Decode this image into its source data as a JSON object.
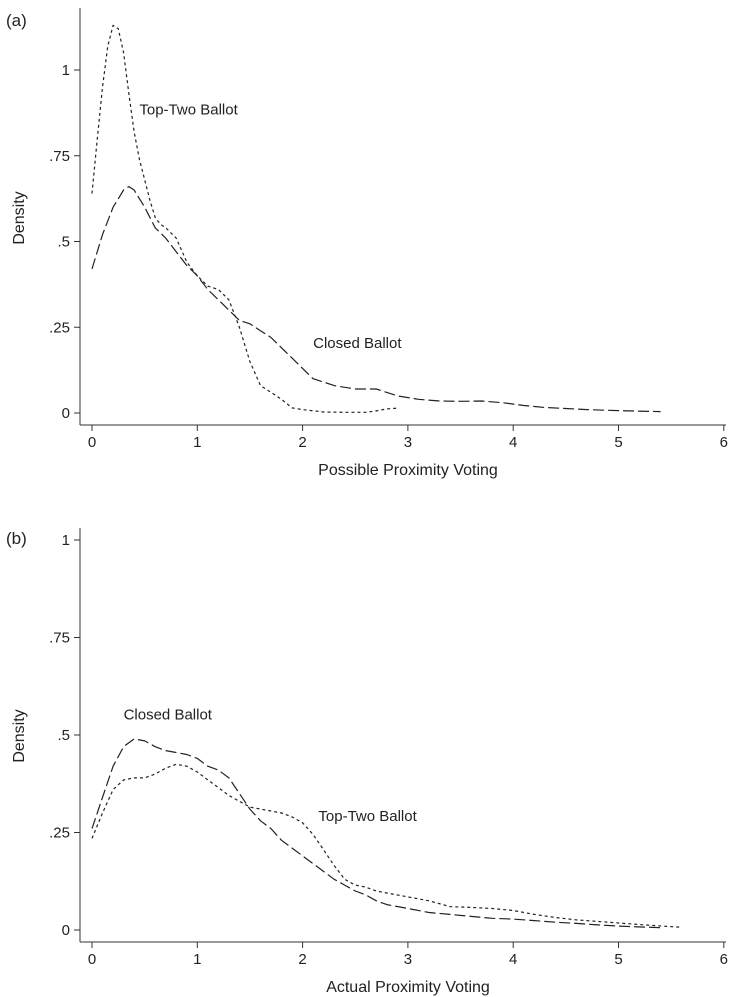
{
  "chart_data": [
    {
      "type": "line",
      "panel_label": "(a)",
      "xlabel": "Possible Proximity Voting",
      "ylabel": "Density",
      "xlim": [
        0,
        6
      ],
      "ylim": [
        0,
        1.15
      ],
      "x_ticks": [
        {
          "value": 0,
          "label": "0"
        },
        {
          "value": 1,
          "label": "1"
        },
        {
          "value": 2,
          "label": "2"
        },
        {
          "value": 3,
          "label": "3"
        },
        {
          "value": 4,
          "label": "4"
        },
        {
          "value": 5,
          "label": "5"
        },
        {
          "value": 6,
          "label": "6"
        }
      ],
      "y_ticks": [
        {
          "value": 0,
          "label": "0"
        },
        {
          "value": 0.25,
          "label": ".25"
        },
        {
          "value": 0.5,
          "label": ".5"
        },
        {
          "value": 0.75,
          "label": ".75"
        },
        {
          "value": 1,
          "label": "1"
        }
      ],
      "grid": false,
      "series": [
        {
          "name": "Top-Two Ballot",
          "dash": "short",
          "points": [
            [
              0,
              0.64
            ],
            [
              0.05,
              0.8
            ],
            [
              0.1,
              0.95
            ],
            [
              0.15,
              1.07
            ],
            [
              0.2,
              1.13
            ],
            [
              0.25,
              1.12
            ],
            [
              0.3,
              1.05
            ],
            [
              0.35,
              0.93
            ],
            [
              0.4,
              0.82
            ],
            [
              0.45,
              0.74
            ],
            [
              0.5,
              0.68
            ],
            [
              0.55,
              0.62
            ],
            [
              0.6,
              0.57
            ],
            [
              0.65,
              0.55
            ],
            [
              0.7,
              0.54
            ],
            [
              0.8,
              0.51
            ],
            [
              0.9,
              0.44
            ],
            [
              1.0,
              0.4
            ],
            [
              1.1,
              0.37
            ],
            [
              1.2,
              0.36
            ],
            [
              1.3,
              0.33
            ],
            [
              1.4,
              0.25
            ],
            [
              1.5,
              0.15
            ],
            [
              1.6,
              0.08
            ],
            [
              1.7,
              0.06
            ],
            [
              1.8,
              0.04
            ],
            [
              1.9,
              0.015
            ],
            [
              2.0,
              0.01
            ],
            [
              2.2,
              0.003
            ],
            [
              2.4,
              0.002
            ],
            [
              2.6,
              0.002
            ],
            [
              2.7,
              0.006
            ],
            [
              2.8,
              0.012
            ],
            [
              2.9,
              0.014
            ]
          ]
        },
        {
          "name": "Closed Ballot",
          "dash": "long",
          "points": [
            [
              0,
              0.42
            ],
            [
              0.1,
              0.52
            ],
            [
              0.2,
              0.6
            ],
            [
              0.3,
              0.65
            ],
            [
              0.35,
              0.66
            ],
            [
              0.4,
              0.65
            ],
            [
              0.5,
              0.6
            ],
            [
              0.6,
              0.54
            ],
            [
              0.7,
              0.51
            ],
            [
              0.8,
              0.47
            ],
            [
              0.9,
              0.43
            ],
            [
              1.0,
              0.4
            ],
            [
              1.1,
              0.36
            ],
            [
              1.2,
              0.33
            ],
            [
              1.3,
              0.3
            ],
            [
              1.4,
              0.27
            ],
            [
              1.5,
              0.26
            ],
            [
              1.6,
              0.24
            ],
            [
              1.7,
              0.22
            ],
            [
              1.8,
              0.19
            ],
            [
              1.9,
              0.16
            ],
            [
              2.0,
              0.13
            ],
            [
              2.1,
              0.1
            ],
            [
              2.2,
              0.09
            ],
            [
              2.3,
              0.08
            ],
            [
              2.5,
              0.07
            ],
            [
              2.7,
              0.07
            ],
            [
              2.9,
              0.05
            ],
            [
              3.1,
              0.04
            ],
            [
              3.3,
              0.035
            ],
            [
              3.5,
              0.034
            ],
            [
              3.7,
              0.035
            ],
            [
              3.9,
              0.03
            ],
            [
              4.1,
              0.022
            ],
            [
              4.3,
              0.016
            ],
            [
              4.5,
              0.013
            ],
            [
              4.7,
              0.01
            ],
            [
              4.9,
              0.008
            ],
            [
              5.1,
              0.006
            ],
            [
              5.4,
              0.004
            ]
          ]
        }
      ],
      "annotations": [
        {
          "text": "Top-Two Ballot",
          "x": 0.45,
          "y": 0.87
        },
        {
          "text": "Closed Ballot",
          "x": 2.1,
          "y": 0.19
        }
      ]
    },
    {
      "type": "line",
      "panel_label": "(b)",
      "xlabel": "Actual Proximity Voting",
      "ylabel": "Density",
      "xlim": [
        0,
        6
      ],
      "ylim": [
        0,
        1.02
      ],
      "x_ticks": [
        {
          "value": 0,
          "label": "0"
        },
        {
          "value": 1,
          "label": "1"
        },
        {
          "value": 2,
          "label": "2"
        },
        {
          "value": 3,
          "label": "3"
        },
        {
          "value": 4,
          "label": "4"
        },
        {
          "value": 5,
          "label": "5"
        },
        {
          "value": 6,
          "label": "6"
        }
      ],
      "y_ticks": [
        {
          "value": 0,
          "label": "0"
        },
        {
          "value": 0.25,
          "label": ".25"
        },
        {
          "value": 0.5,
          "label": ".5"
        },
        {
          "value": 0.75,
          "label": ".75"
        },
        {
          "value": 1,
          "label": "1"
        }
      ],
      "grid": false,
      "series": [
        {
          "name": "Closed Ballot",
          "dash": "long",
          "points": [
            [
              0,
              0.26
            ],
            [
              0.1,
              0.34
            ],
            [
              0.2,
              0.42
            ],
            [
              0.3,
              0.47
            ],
            [
              0.4,
              0.49
            ],
            [
              0.5,
              0.485
            ],
            [
              0.6,
              0.47
            ],
            [
              0.7,
              0.46
            ],
            [
              0.8,
              0.455
            ],
            [
              0.9,
              0.45
            ],
            [
              1.0,
              0.44
            ],
            [
              1.1,
              0.42
            ],
            [
              1.2,
              0.41
            ],
            [
              1.3,
              0.39
            ],
            [
              1.4,
              0.35
            ],
            [
              1.5,
              0.31
            ],
            [
              1.6,
              0.28
            ],
            [
              1.7,
              0.26
            ],
            [
              1.8,
              0.23
            ],
            [
              1.9,
              0.21
            ],
            [
              2.0,
              0.19
            ],
            [
              2.1,
              0.17
            ],
            [
              2.2,
              0.15
            ],
            [
              2.3,
              0.13
            ],
            [
              2.4,
              0.115
            ],
            [
              2.5,
              0.1
            ],
            [
              2.6,
              0.09
            ],
            [
              2.7,
              0.075
            ],
            [
              2.8,
              0.065
            ],
            [
              3.0,
              0.055
            ],
            [
              3.2,
              0.045
            ],
            [
              3.4,
              0.04
            ],
            [
              3.6,
              0.035
            ],
            [
              3.8,
              0.03
            ],
            [
              4.0,
              0.028
            ],
            [
              4.2,
              0.024
            ],
            [
              4.4,
              0.02
            ],
            [
              4.6,
              0.017
            ],
            [
              4.8,
              0.013
            ],
            [
              5.0,
              0.01
            ],
            [
              5.4,
              0.006
            ]
          ]
        },
        {
          "name": "Top-Two Ballot",
          "dash": "short",
          "points": [
            [
              0,
              0.235
            ],
            [
              0.1,
              0.3
            ],
            [
              0.2,
              0.36
            ],
            [
              0.3,
              0.385
            ],
            [
              0.4,
              0.39
            ],
            [
              0.5,
              0.39
            ],
            [
              0.6,
              0.4
            ],
            [
              0.7,
              0.415
            ],
            [
              0.8,
              0.425
            ],
            [
              0.9,
              0.42
            ],
            [
              1.0,
              0.405
            ],
            [
              1.1,
              0.385
            ],
            [
              1.2,
              0.365
            ],
            [
              1.3,
              0.345
            ],
            [
              1.4,
              0.33
            ],
            [
              1.5,
              0.315
            ],
            [
              1.6,
              0.31
            ],
            [
              1.7,
              0.305
            ],
            [
              1.8,
              0.3
            ],
            [
              1.9,
              0.29
            ],
            [
              2.0,
              0.275
            ],
            [
              2.1,
              0.245
            ],
            [
              2.2,
              0.205
            ],
            [
              2.3,
              0.165
            ],
            [
              2.4,
              0.13
            ],
            [
              2.5,
              0.115
            ],
            [
              2.6,
              0.11
            ],
            [
              2.7,
              0.1
            ],
            [
              2.8,
              0.095
            ],
            [
              3.0,
              0.085
            ],
            [
              3.2,
              0.075
            ],
            [
              3.4,
              0.06
            ],
            [
              3.6,
              0.058
            ],
            [
              3.8,
              0.055
            ],
            [
              4.0,
              0.05
            ],
            [
              4.2,
              0.04
            ],
            [
              4.4,
              0.032
            ],
            [
              4.6,
              0.026
            ],
            [
              4.8,
              0.022
            ],
            [
              5.0,
              0.018
            ],
            [
              5.3,
              0.012
            ],
            [
              5.6,
              0.007
            ]
          ]
        }
      ],
      "annotations": [
        {
          "text": "Closed Ballot",
          "x": 0.3,
          "y": 0.54
        },
        {
          "text": "Top-Two Ballot",
          "x": 2.15,
          "y": 0.28
        }
      ]
    }
  ]
}
